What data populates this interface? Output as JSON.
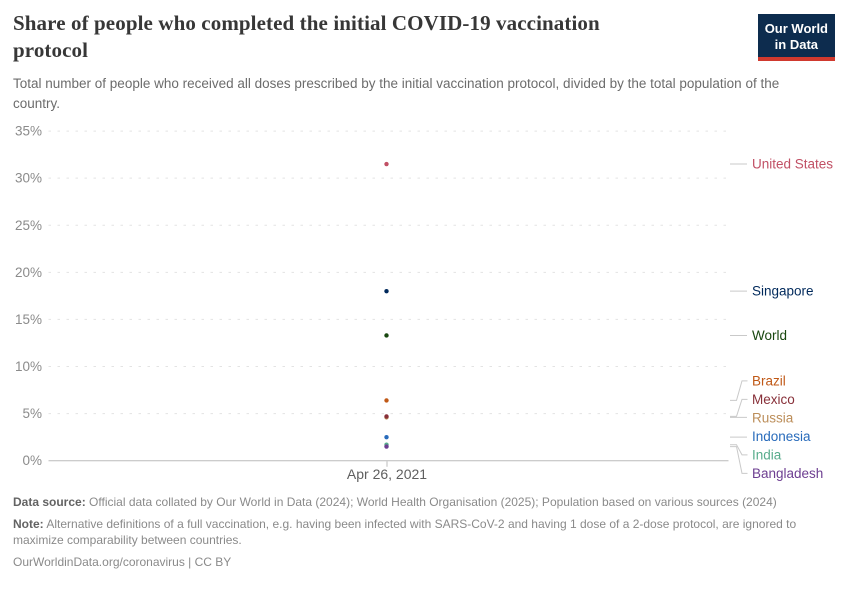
{
  "header": {
    "title": "Share of people who completed the initial COVID-19 vaccination protocol",
    "subtitle": "Total number of people who received all doses prescribed by the initial vaccination protocol, divided by the total population of the country."
  },
  "logo": {
    "line1": "Our World",
    "line2": "in Data",
    "bg_color": "#0d2c4e",
    "accent_color": "#d0392e"
  },
  "chart_data": {
    "type": "scatter",
    "title": "Share of people who completed the initial COVID-19 vaccination protocol",
    "x_tick_label": "Apr 26, 2021",
    "ylim": [
      0,
      35
    ],
    "ytick_labels": [
      "0%",
      "5%",
      "10%",
      "15%",
      "20%",
      "25%",
      "30%",
      "35%"
    ],
    "grid": "horizontal-dashed",
    "legend_position": "right-entity-labels",
    "unit": "%",
    "series": [
      {
        "name": "United States",
        "value": 31.5,
        "color": "#C15065"
      },
      {
        "name": "Singapore",
        "value": 18.0,
        "color": "#00295B"
      },
      {
        "name": "World",
        "value": 13.3,
        "color": "#18470F"
      },
      {
        "name": "Brazil",
        "value": 6.4,
        "color": "#C05917"
      },
      {
        "name": "Russia",
        "value": 4.6,
        "color": "#BC8E5A"
      },
      {
        "name": "Mexico",
        "value": 4.7,
        "color": "#883039"
      },
      {
        "name": "Indonesia",
        "value": 2.5,
        "color": "#286BBB"
      },
      {
        "name": "India",
        "value": 1.7,
        "color": "#58AC8C"
      },
      {
        "name": "Bangladesh",
        "value": 1.5,
        "color": "#6D3E91"
      }
    ],
    "colors": {
      "grid": "#e3e3e3",
      "axis": "#bcbcbc",
      "connector": "#c9c9c9",
      "ytick_label": "#8b8b8b",
      "date_label": "#5f5f5f"
    }
  },
  "footer": {
    "data_source_label": "Data source:",
    "data_source_text": "Official data collated by Our World in Data (2024); World Health Organisation (2025); Population based on various sources (2024)",
    "note_label": "Note:",
    "note_text": "Alternative definitions of a full vaccination, e.g. having been infected with SARS-CoV-2 and having 1 dose of a 2-dose protocol, are ignored to maximize comparability between countries.",
    "credit": "OurWorldinData.org/coronavirus | CC BY"
  }
}
